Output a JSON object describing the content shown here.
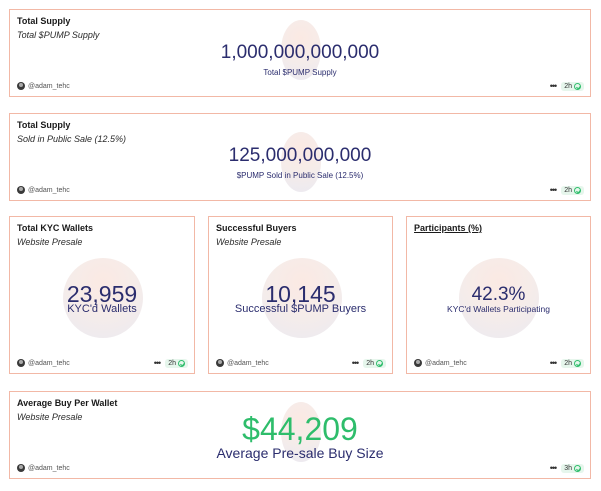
{
  "cards": {
    "total_supply": {
      "title": "Total Supply",
      "subtitle": "Total $PUMP Supply",
      "value": "1,000,000,000,000",
      "label": "Total $PUMP Supply",
      "author": "@adam_tehc",
      "age": "2h"
    },
    "sold_supply": {
      "title": "Total Supply",
      "subtitle": "Sold in Public Sale (12.5%)",
      "value": "125,000,000,000",
      "label": "$PUMP Sold in Public Sale (12.5%)",
      "author": "@adam_tehc",
      "age": "2h"
    },
    "kyc_wallets": {
      "title": "Total KYC Wallets",
      "subtitle": "Website Presale",
      "value": "23,959",
      "label": "KYC'd Wallets",
      "author": "@adam_tehc",
      "age": "2h"
    },
    "successful_buyers": {
      "title": "Successful Buyers",
      "subtitle": "Website Presale",
      "value": "10,145",
      "label": "Successful $PUMP Buyers",
      "author": "@adam_tehc",
      "age": "2h"
    },
    "participants": {
      "title": "Participants (%)",
      "subtitle": "",
      "value": "42.3%",
      "label": "KYC'd Wallets Participating",
      "author": "@adam_tehc",
      "age": "2h"
    },
    "avg_buy": {
      "title": "Average Buy Per Wallet",
      "subtitle": "Website Presale",
      "value": "$44,209",
      "label": "Average Pre-sale Buy Size",
      "author": "@adam_tehc",
      "age": "3h"
    }
  },
  "icons": {
    "avatar": "user-avatar",
    "menu": "more-horizontal-icon",
    "status": "check-circle-icon"
  },
  "colors": {
    "card_border": "#f2b8a6",
    "value_text": "#2b2d6e",
    "accent_green": "#2ebd6b"
  }
}
